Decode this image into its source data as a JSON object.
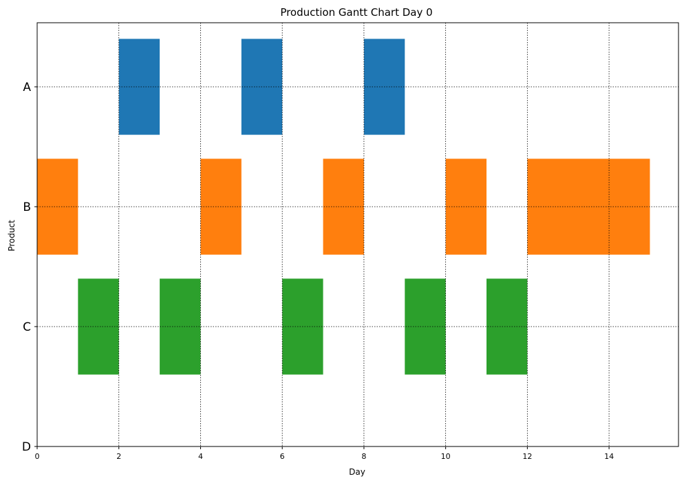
{
  "chart_data": {
    "type": "gantt",
    "title": "Production Gantt Chart Day 0",
    "xlabel": "Day",
    "ylabel": "Product",
    "xlim": [
      0,
      15.7
    ],
    "x_ticks": [
      0,
      2,
      4,
      6,
      8,
      10,
      12,
      14
    ],
    "y_categories": [
      "A",
      "B",
      "C",
      "D"
    ],
    "grid": true,
    "bar_half_height": 0.4,
    "series": [
      {
        "category": "A",
        "color": "#1f77b4",
        "tasks": [
          [
            2,
            3
          ],
          [
            5,
            6
          ],
          [
            8,
            9
          ]
        ]
      },
      {
        "category": "B",
        "color": "#ff7f0e",
        "tasks": [
          [
            0,
            1
          ],
          [
            4,
            5
          ],
          [
            7,
            8
          ],
          [
            10,
            11
          ],
          [
            12,
            15
          ]
        ]
      },
      {
        "category": "C",
        "color": "#2ca02c",
        "tasks": [
          [
            1,
            2
          ],
          [
            3,
            4
          ],
          [
            6,
            7
          ],
          [
            9,
            10
          ],
          [
            11,
            12
          ]
        ]
      }
    ]
  }
}
